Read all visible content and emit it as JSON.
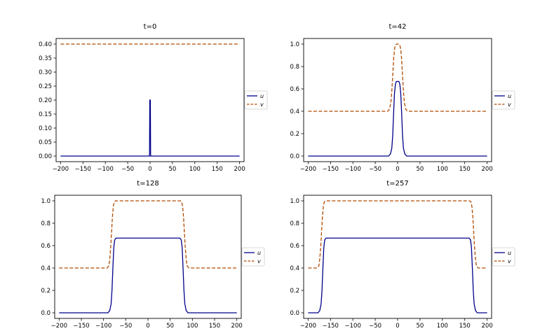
{
  "chart_data": [
    {
      "type": "line",
      "title": "t=0",
      "xlim": [
        -210,
        210
      ],
      "ylim": [
        -0.02,
        0.42
      ],
      "xticks": [
        -200,
        -150,
        -100,
        -50,
        0,
        50,
        100,
        150,
        200
      ],
      "yticks": [
        0.0,
        0.05,
        0.1,
        0.15,
        0.2,
        0.25,
        0.3,
        0.35,
        0.4
      ],
      "ytick_labels": [
        "0.00",
        "0.05",
        "0.10",
        "0.15",
        "0.20",
        "0.25",
        "0.30",
        "0.35",
        "0.40"
      ],
      "legend": "center-right-outside",
      "series": [
        {
          "name": "u",
          "color": "#00008b",
          "style": "solid",
          "x": [
            -200,
            -1.2,
            -0.6,
            0,
            0.6,
            1.2,
            200
          ],
          "y": [
            0,
            0,
            0.2,
            0.2,
            0.2,
            0,
            0
          ]
        },
        {
          "name": "v",
          "color": "#b04a00",
          "style": "dashed",
          "x": [
            -200,
            200
          ],
          "y": [
            0.4,
            0.4
          ]
        }
      ]
    },
    {
      "type": "line",
      "title": "t=42",
      "xlim": [
        -210,
        210
      ],
      "ylim": [
        -0.05,
        1.05
      ],
      "xticks": [
        -200,
        -150,
        -100,
        -50,
        0,
        50,
        100,
        150,
        200
      ],
      "yticks": [
        0.0,
        0.2,
        0.4,
        0.6,
        0.8,
        1.0
      ],
      "ytick_labels": [
        "0.0",
        "0.2",
        "0.4",
        "0.6",
        "0.8",
        "1.0"
      ],
      "legend": "center-right-outside",
      "series": [
        {
          "name": "u",
          "color": "#00008b",
          "style": "solid",
          "x": [
            -200,
            -20,
            -16,
            -13,
            -11,
            -9,
            -7,
            -5,
            -3,
            0,
            3,
            5,
            7,
            9,
            11,
            13,
            16,
            20,
            200
          ],
          "y": [
            0,
            0,
            0.02,
            0.07,
            0.18,
            0.38,
            0.56,
            0.64,
            0.665,
            0.667,
            0.665,
            0.64,
            0.56,
            0.38,
            0.18,
            0.07,
            0.02,
            0,
            0
          ]
        },
        {
          "name": "v",
          "color": "#b04a00",
          "style": "dashed",
          "x": [
            -200,
            -22,
            -18,
            -15,
            -13,
            -11,
            -9,
            -7,
            -5,
            -3,
            0,
            3,
            5,
            7,
            9,
            11,
            13,
            15,
            18,
            22,
            200
          ],
          "y": [
            0.4,
            0.4,
            0.42,
            0.48,
            0.58,
            0.72,
            0.86,
            0.95,
            0.99,
            1.0,
            1.0,
            1.0,
            0.99,
            0.95,
            0.86,
            0.72,
            0.58,
            0.48,
            0.42,
            0.4,
            0.4
          ]
        }
      ]
    },
    {
      "type": "line",
      "title": "t=128",
      "xlim": [
        -210,
        210
      ],
      "ylim": [
        -0.05,
        1.05
      ],
      "xticks": [
        -200,
        -150,
        -100,
        -50,
        0,
        50,
        100,
        150,
        200
      ],
      "yticks": [
        0.0,
        0.2,
        0.4,
        0.6,
        0.8,
        1.0
      ],
      "ytick_labels": [
        "0.0",
        "0.2",
        "0.4",
        "0.6",
        "0.8",
        "1.0"
      ],
      "legend": "center-right-outside",
      "series": [
        {
          "name": "u",
          "color": "#00008b",
          "style": "solid",
          "x": [
            -200,
            -90,
            -86,
            -83,
            -81,
            -79,
            -77,
            -75,
            -72,
            72,
            75,
            77,
            79,
            81,
            83,
            86,
            90,
            200
          ],
          "y": [
            0,
            0,
            0.02,
            0.08,
            0.2,
            0.4,
            0.58,
            0.65,
            0.667,
            0.667,
            0.65,
            0.58,
            0.4,
            0.2,
            0.08,
            0.02,
            0,
            0
          ]
        },
        {
          "name": "v",
          "color": "#b04a00",
          "style": "dashed",
          "x": [
            -200,
            -92,
            -88,
            -86,
            -84,
            -82,
            -80,
            -78,
            -76,
            -73,
            73,
            76,
            78,
            80,
            82,
            84,
            86,
            88,
            92,
            200
          ],
          "y": [
            0.4,
            0.4,
            0.42,
            0.48,
            0.58,
            0.72,
            0.86,
            0.95,
            0.99,
            1.0,
            1.0,
            0.99,
            0.95,
            0.86,
            0.72,
            0.58,
            0.48,
            0.42,
            0.4,
            0.4
          ]
        }
      ]
    },
    {
      "type": "line",
      "title": "t=257",
      "xlim": [
        -210,
        210
      ],
      "ylim": [
        -0.05,
        1.05
      ],
      "xticks": [
        -200,
        -150,
        -100,
        -50,
        0,
        50,
        100,
        150,
        200
      ],
      "yticks": [
        0.0,
        0.2,
        0.4,
        0.6,
        0.8,
        1.0
      ],
      "ytick_labels": [
        "0.0",
        "0.2",
        "0.4",
        "0.6",
        "0.8",
        "1.0"
      ],
      "legend": "center-right-outside",
      "series": [
        {
          "name": "u",
          "color": "#00008b",
          "style": "solid",
          "x": [
            -200,
            -178,
            -174,
            -171,
            -169,
            -167,
            -165,
            -163,
            -160,
            160,
            163,
            165,
            167,
            169,
            171,
            174,
            178,
            200
          ],
          "y": [
            0,
            0,
            0.02,
            0.08,
            0.2,
            0.4,
            0.58,
            0.65,
            0.667,
            0.667,
            0.65,
            0.58,
            0.4,
            0.2,
            0.08,
            0.02,
            0,
            0
          ]
        },
        {
          "name": "v",
          "color": "#b04a00",
          "style": "dashed",
          "x": [
            -200,
            -180,
            -176,
            -174,
            -172,
            -170,
            -168,
            -166,
            -164,
            -161,
            161,
            164,
            166,
            168,
            170,
            172,
            174,
            176,
            180,
            200
          ],
          "y": [
            0.4,
            0.4,
            0.42,
            0.48,
            0.58,
            0.72,
            0.86,
            0.95,
            0.99,
            1.0,
            1.0,
            0.99,
            0.95,
            0.86,
            0.72,
            0.58,
            0.48,
            0.42,
            0.4,
            0.4
          ]
        }
      ]
    }
  ]
}
